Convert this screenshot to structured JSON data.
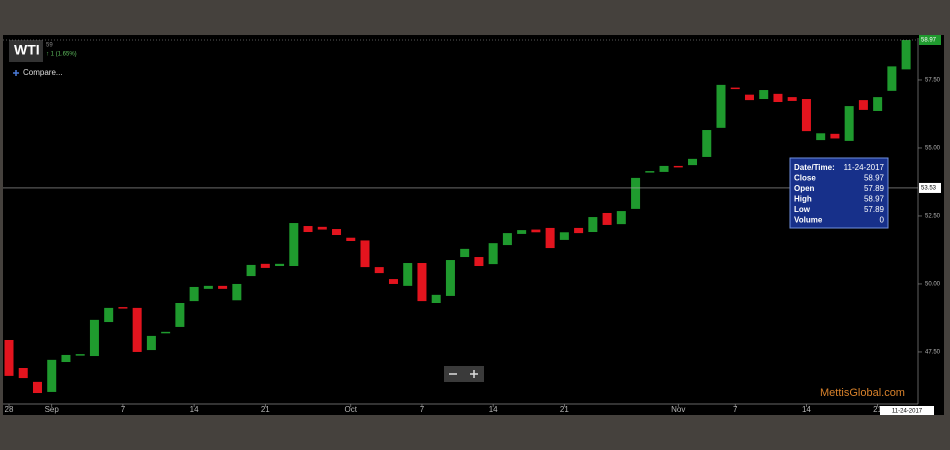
{
  "header": {
    "symbol": "WTI",
    "last": "59",
    "change": "↑ 1 (1.65%)",
    "compare": "Compare..."
  },
  "watermark": "MettisGlobal.com",
  "tooltip": {
    "rows": [
      [
        "Date/Time:",
        "11-24-2017"
      ],
      [
        "Close",
        "58.97"
      ],
      [
        "Open",
        "57.89"
      ],
      [
        "High",
        "58.97"
      ],
      [
        "Low",
        "57.89"
      ],
      [
        "Volume",
        "0"
      ]
    ]
  },
  "chart_data": {
    "type": "candlestick",
    "categories": [
      "28",
      null,
      null,
      "Sep",
      null,
      null,
      null,
      null,
      "7",
      null,
      null,
      null,
      null,
      "14",
      null,
      null,
      null,
      null,
      "21",
      null,
      null,
      null,
      null,
      null,
      "Oct",
      null,
      null,
      null,
      null,
      "7",
      null,
      null,
      null,
      null,
      "14",
      null,
      null,
      null,
      null,
      "21",
      null,
      null,
      null,
      null,
      null,
      null,
      null,
      "Nov",
      null,
      null,
      null,
      "7",
      null,
      null,
      null,
      null,
      "14",
      null,
      null,
      null,
      null,
      "21",
      null,
      null
    ],
    "open": [
      47.94,
      46.91,
      46.4,
      46.03,
      47.13,
      47.39,
      47.35,
      48.6,
      49.15,
      49.12,
      47.57,
      48.2,
      48.42,
      49.37,
      49.82,
      49.93,
      49.4,
      50.29,
      50.74,
      50.66,
      50.66,
      52.13,
      52.1,
      52.02,
      51.7,
      51.6,
      50.62,
      50.18,
      49.93,
      50.77,
      49.3,
      49.56,
      50.99,
      50.99,
      50.73,
      51.43,
      51.84,
      52.0,
      52.06,
      51.62,
      52.06,
      51.91,
      52.61,
      52.2,
      52.76,
      54.1,
      54.12,
      54.34,
      54.37,
      54.67,
      55.74,
      57.22,
      56.96,
      56.8,
      56.99,
      56.87,
      56.8,
      55.29,
      55.52,
      55.26,
      56.76,
      56.36,
      57.1,
      57.89
    ],
    "close": [
      46.62,
      46.54,
      45.99,
      47.21,
      47.39,
      47.42,
      48.68,
      49.12,
      49.12,
      47.5,
      48.09,
      48.24,
      49.3,
      49.89,
      49.93,
      49.82,
      50.0,
      50.7,
      50.59,
      50.74,
      52.24,
      51.91,
      52.0,
      51.8,
      51.58,
      50.62,
      50.4,
      50.0,
      50.77,
      49.37,
      49.6,
      50.88,
      51.29,
      50.66,
      51.5,
      51.87,
      51.98,
      51.9,
      51.32,
      51.9,
      51.87,
      52.46,
      52.17,
      52.68,
      53.9,
      54.15,
      54.34,
      54.3,
      54.6,
      55.66,
      57.32,
      57.18,
      56.76,
      57.13,
      56.69,
      56.73,
      55.62,
      55.54,
      55.35,
      56.54,
      56.4,
      56.87,
      58.0,
      58.97
    ],
    "up_color": "#1f9a2e",
    "down_color": "#e3141e",
    "ylim": [
      45.66,
      58.97
    ],
    "yticks": [
      {
        "value": 47.5,
        "label": "47.50"
      },
      {
        "value": 50,
        "label": "50.00"
      },
      {
        "value": 52.5,
        "label": "52.50"
      },
      {
        "value": 55,
        "label": "55.00"
      },
      {
        "value": 57.5,
        "label": "57.50"
      }
    ],
    "last_price": {
      "value": 58.97,
      "label": "58.97"
    },
    "crosshair": {
      "value": 53.53,
      "label": "53.53"
    },
    "crosshair_date": "11-24-2017"
  }
}
